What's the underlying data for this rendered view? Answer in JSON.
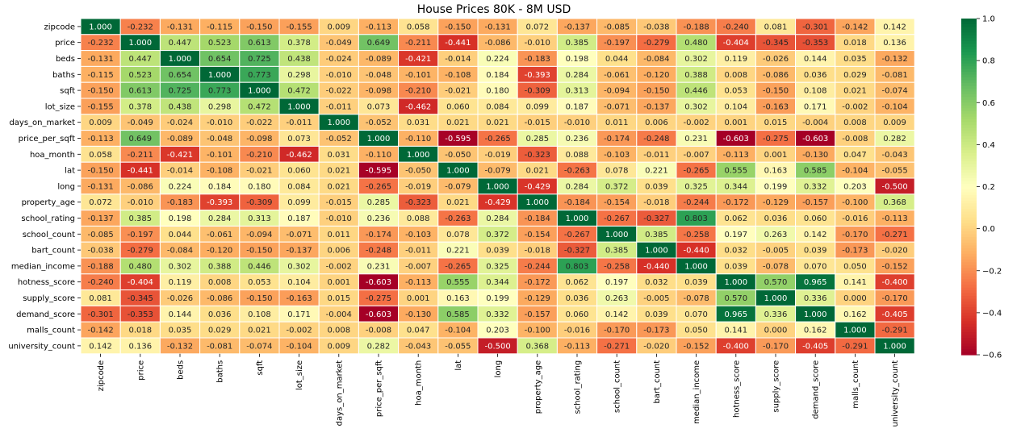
{
  "chart_data": {
    "type": "heatmap",
    "title": "House Prices 80K - 8M USD",
    "xlabel": "",
    "ylabel": "",
    "labels": [
      "zipcode",
      "price",
      "beds",
      "baths",
      "sqft",
      "lot_size",
      "days_on_market",
      "price_per_sqft",
      "hoa_month",
      "lat",
      "long",
      "property_age",
      "school_rating",
      "school_count",
      "bart_count",
      "median_income",
      "hotness_score",
      "supply_score",
      "demand_score",
      "malls_count",
      "university_count"
    ],
    "values": [
      [
        1.0,
        -0.232,
        -0.131,
        -0.115,
        -0.15,
        -0.155,
        0.009,
        -0.113,
        0.058,
        -0.15,
        -0.131,
        0.072,
        -0.137,
        -0.085,
        -0.038,
        -0.188,
        -0.24,
        0.081,
        -0.301,
        -0.142,
        0.142
      ],
      [
        -0.232,
        1.0,
        0.447,
        0.523,
        0.613,
        0.378,
        -0.049,
        0.649,
        -0.211,
        -0.441,
        -0.086,
        -0.01,
        0.385,
        -0.197,
        -0.279,
        0.48,
        -0.404,
        -0.345,
        -0.353,
        0.018,
        0.136
      ],
      [
        -0.131,
        0.447,
        1.0,
        0.654,
        0.725,
        0.438,
        -0.024,
        -0.089,
        -0.421,
        -0.014,
        0.224,
        -0.183,
        0.198,
        0.044,
        -0.084,
        0.302,
        0.119,
        -0.026,
        0.144,
        0.035,
        -0.132
      ],
      [
        -0.115,
        0.523,
        0.654,
        1.0,
        0.773,
        0.298,
        -0.01,
        -0.048,
        -0.101,
        -0.108,
        0.184,
        -0.393,
        0.284,
        -0.061,
        -0.12,
        0.388,
        0.008,
        -0.086,
        0.036,
        0.029,
        -0.081
      ],
      [
        -0.15,
        0.613,
        0.725,
        0.773,
        1.0,
        0.472,
        -0.022,
        -0.098,
        -0.21,
        -0.021,
        0.18,
        -0.309,
        0.313,
        -0.094,
        -0.15,
        0.446,
        0.053,
        -0.15,
        0.108,
        0.021,
        -0.074
      ],
      [
        -0.155,
        0.378,
        0.438,
        0.298,
        0.472,
        1.0,
        -0.011,
        0.073,
        -0.462,
        0.06,
        0.084,
        0.099,
        0.187,
        -0.071,
        -0.137,
        0.302,
        0.104,
        -0.163,
        0.171,
        -0.002,
        -0.104
      ],
      [
        0.009,
        -0.049,
        -0.024,
        -0.01,
        -0.022,
        -0.011,
        1.0,
        -0.052,
        0.031,
        0.021,
        0.021,
        -0.015,
        -0.01,
        0.011,
        0.006,
        -0.002,
        0.001,
        0.015,
        -0.004,
        0.008,
        0.009
      ],
      [
        -0.113,
        0.649,
        -0.089,
        -0.048,
        -0.098,
        0.073,
        -0.052,
        1.0,
        -0.11,
        -0.595,
        -0.265,
        0.285,
        0.236,
        -0.174,
        -0.248,
        0.231,
        -0.603,
        -0.275,
        -0.603,
        -0.008,
        0.282
      ],
      [
        0.058,
        -0.211,
        -0.421,
        -0.101,
        -0.21,
        -0.462,
        0.031,
        -0.11,
        1.0,
        -0.05,
        -0.019,
        -0.323,
        0.088,
        -0.103,
        -0.011,
        -0.007,
        -0.113,
        0.001,
        -0.13,
        0.047,
        -0.043
      ],
      [
        -0.15,
        -0.441,
        -0.014,
        -0.108,
        -0.021,
        0.06,
        0.021,
        -0.595,
        -0.05,
        1.0,
        -0.079,
        0.021,
        -0.263,
        0.078,
        0.221,
        -0.265,
        0.555,
        0.163,
        0.585,
        -0.104,
        -0.055
      ],
      [
        -0.131,
        -0.086,
        0.224,
        0.184,
        0.18,
        0.084,
        0.021,
        -0.265,
        -0.019,
        -0.079,
        1.0,
        -0.429,
        0.284,
        0.372,
        0.039,
        0.325,
        0.344,
        0.199,
        0.332,
        0.203,
        -0.5
      ],
      [
        0.072,
        -0.01,
        -0.183,
        -0.393,
        -0.309,
        0.099,
        -0.015,
        0.285,
        -0.323,
        0.021,
        -0.429,
        1.0,
        -0.184,
        -0.154,
        -0.018,
        -0.244,
        -0.172,
        -0.129,
        -0.157,
        -0.1,
        0.368
      ],
      [
        -0.137,
        0.385,
        0.198,
        0.284,
        0.313,
        0.187,
        -0.01,
        0.236,
        0.088,
        -0.263,
        0.284,
        -0.184,
        1.0,
        -0.267,
        -0.327,
        0.803,
        0.062,
        0.036,
        0.06,
        -0.016,
        -0.113
      ],
      [
        -0.085,
        -0.197,
        0.044,
        -0.061,
        -0.094,
        -0.071,
        0.011,
        -0.174,
        -0.103,
        0.078,
        0.372,
        -0.154,
        -0.267,
        1.0,
        0.385,
        -0.258,
        0.197,
        0.263,
        0.142,
        -0.17,
        -0.271
      ],
      [
        -0.038,
        -0.279,
        -0.084,
        -0.12,
        -0.15,
        -0.137,
        0.006,
        -0.248,
        -0.011,
        0.221,
        0.039,
        -0.018,
        -0.327,
        0.385,
        1.0,
        -0.44,
        0.032,
        -0.005,
        0.039,
        -0.173,
        -0.02
      ],
      [
        -0.188,
        0.48,
        0.302,
        0.388,
        0.446,
        0.302,
        -0.002,
        0.231,
        -0.007,
        -0.265,
        0.325,
        -0.244,
        0.803,
        -0.258,
        -0.44,
        1.0,
        0.039,
        -0.078,
        0.07,
        0.05,
        -0.152
      ],
      [
        -0.24,
        -0.404,
        0.119,
        0.008,
        0.053,
        0.104,
        0.001,
        -0.603,
        -0.113,
        0.555,
        0.344,
        -0.172,
        0.062,
        0.197,
        0.032,
        0.039,
        1.0,
        0.57,
        0.965,
        0.141,
        -0.4
      ],
      [
        0.081,
        -0.345,
        -0.026,
        -0.086,
        -0.15,
        -0.163,
        0.015,
        -0.275,
        0.001,
        0.163,
        0.199,
        -0.129,
        0.036,
        0.263,
        -0.005,
        -0.078,
        0.57,
        1.0,
        0.336,
        0.0,
        -0.17
      ],
      [
        -0.301,
        -0.353,
        0.144,
        0.036,
        0.108,
        0.171,
        -0.004,
        -0.603,
        -0.13,
        0.585,
        0.332,
        -0.157,
        0.06,
        0.142,
        0.039,
        0.07,
        0.965,
        0.336,
        1.0,
        0.162,
        -0.405
      ],
      [
        -0.142,
        0.018,
        0.035,
        0.029,
        0.021,
        -0.002,
        0.008,
        -0.008,
        0.047,
        -0.104,
        0.203,
        -0.1,
        -0.016,
        -0.17,
        -0.173,
        0.05,
        0.141,
        0.0,
        0.162,
        1.0,
        -0.291
      ],
      [
        0.142,
        0.136,
        -0.132,
        -0.081,
        -0.074,
        -0.104,
        0.009,
        0.282,
        -0.043,
        -0.055,
        -0.5,
        0.368,
        -0.113,
        -0.271,
        -0.02,
        -0.152,
        -0.4,
        -0.17,
        -0.405,
        -0.291,
        1.0
      ]
    ],
    "colormap": "RdYlGn",
    "vmin": -0.6,
    "vmax": 1.0,
    "colorbar_ticks": [
      "1.0",
      "0.8",
      "0.6",
      "0.4",
      "0.2",
      "0.0",
      "−0.2",
      "−0.4",
      "−0.6"
    ],
    "colorbar_tick_values": [
      1.0,
      0.8,
      0.6,
      0.4,
      0.2,
      0.0,
      -0.2,
      -0.4,
      -0.6
    ],
    "grid": true
  }
}
